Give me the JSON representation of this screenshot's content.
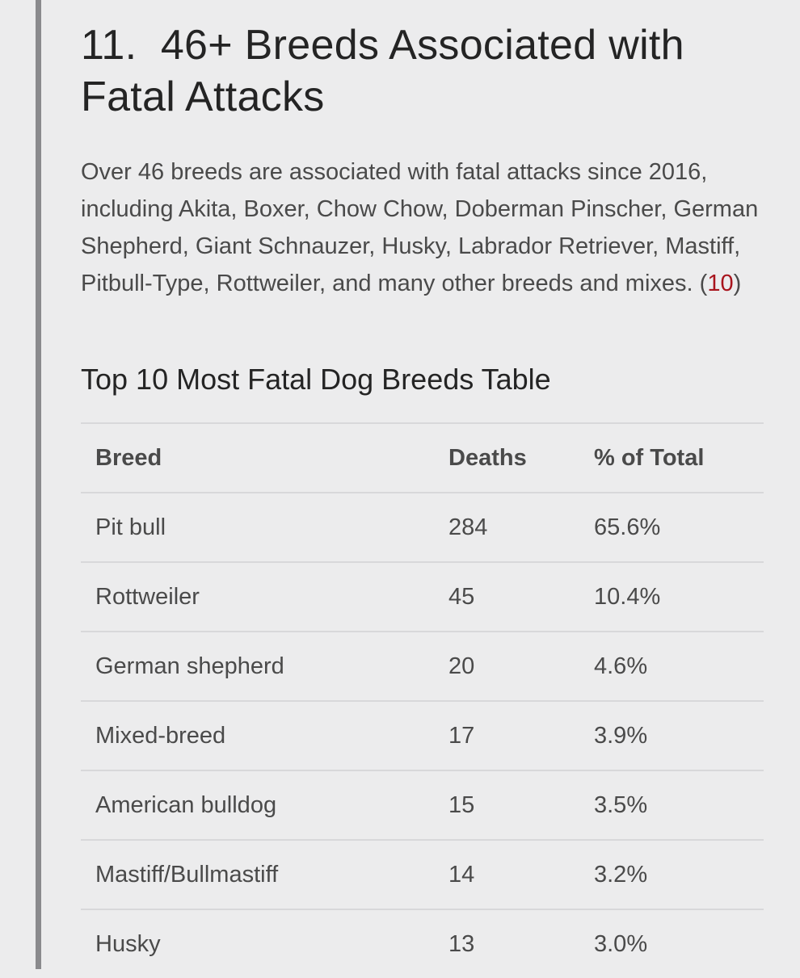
{
  "section": {
    "number": "11.",
    "title": "46+ Breeds Associated with Fatal Attacks"
  },
  "paragraph": {
    "text": "Over 46 breeds are associated with fatal attacks since 2016, including Akita, Boxer, Chow Chow, Doberman Pinscher, German Shepherd, Giant Schnauzer, Husky, Labrador Retriever, Mastiff, Pitbull-Type, Rottweiler, and many other breeds and mixes. (",
    "citation": "10",
    "closing": ")"
  },
  "table_title": "Top 10 Most Fatal Dog Breeds Table",
  "table": {
    "headers": [
      "Breed",
      "Deaths",
      "% of Total"
    ],
    "rows": [
      [
        "Pit bull",
        "284",
        "65.6%"
      ],
      [
        "Rottweiler",
        "45",
        "10.4%"
      ],
      [
        "German shepherd",
        "20",
        "4.6%"
      ],
      [
        "Mixed-breed",
        "17",
        "3.9%"
      ],
      [
        "American bulldog",
        "15",
        "3.5%"
      ],
      [
        "Mastiff/Bullmastiff",
        "14",
        "3.2%"
      ],
      [
        "Husky",
        "13",
        "3.0%"
      ]
    ]
  },
  "colors": {
    "citation_link": "#a8141d",
    "left_rule": "#8a8a8d",
    "background": "#ececed"
  }
}
